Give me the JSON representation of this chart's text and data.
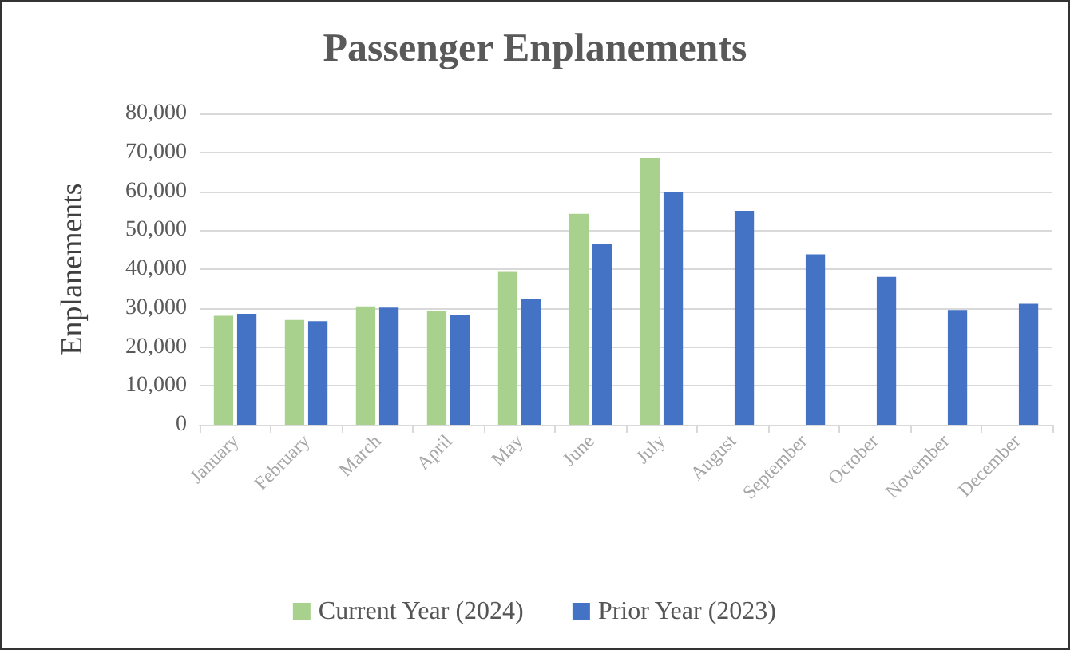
{
  "chart_data": {
    "type": "bar",
    "title": "Passenger Enplanements",
    "ylabel": "Enplanements",
    "categories": [
      "January",
      "February",
      "March",
      "April",
      "May",
      "June",
      "July",
      "August",
      "September",
      "October",
      "November",
      "December"
    ],
    "series": [
      {
        "name": "Current Year (2024)",
        "color": "#a9d18e",
        "values": [
          28000,
          26900,
          30400,
          29300,
          39300,
          54200,
          68500,
          null,
          null,
          null,
          null,
          null
        ]
      },
      {
        "name": "Prior Year (2023)",
        "color": "#4472c4",
        "values": [
          28500,
          26600,
          30100,
          28200,
          32300,
          46500,
          59700,
          55000,
          43800,
          38000,
          29500,
          31100
        ]
      }
    ],
    "ylim": [
      0,
      80000
    ],
    "yticks": [
      0,
      {
        "value": 10000,
        "label": "10,000"
      },
      {
        "value": 20000,
        "label": "20,000"
      },
      {
        "value": 30000,
        "label": "30,000"
      },
      {
        "value": 40000,
        "label": "40,000"
      },
      {
        "value": 50000,
        "label": "50,000"
      },
      {
        "value": 60000,
        "label": "60,000"
      },
      {
        "value": 70000,
        "label": "70,000"
      },
      {
        "value": 80000,
        "label": "80,000"
      }
    ],
    "grid": "y",
    "legend": "bottom"
  }
}
